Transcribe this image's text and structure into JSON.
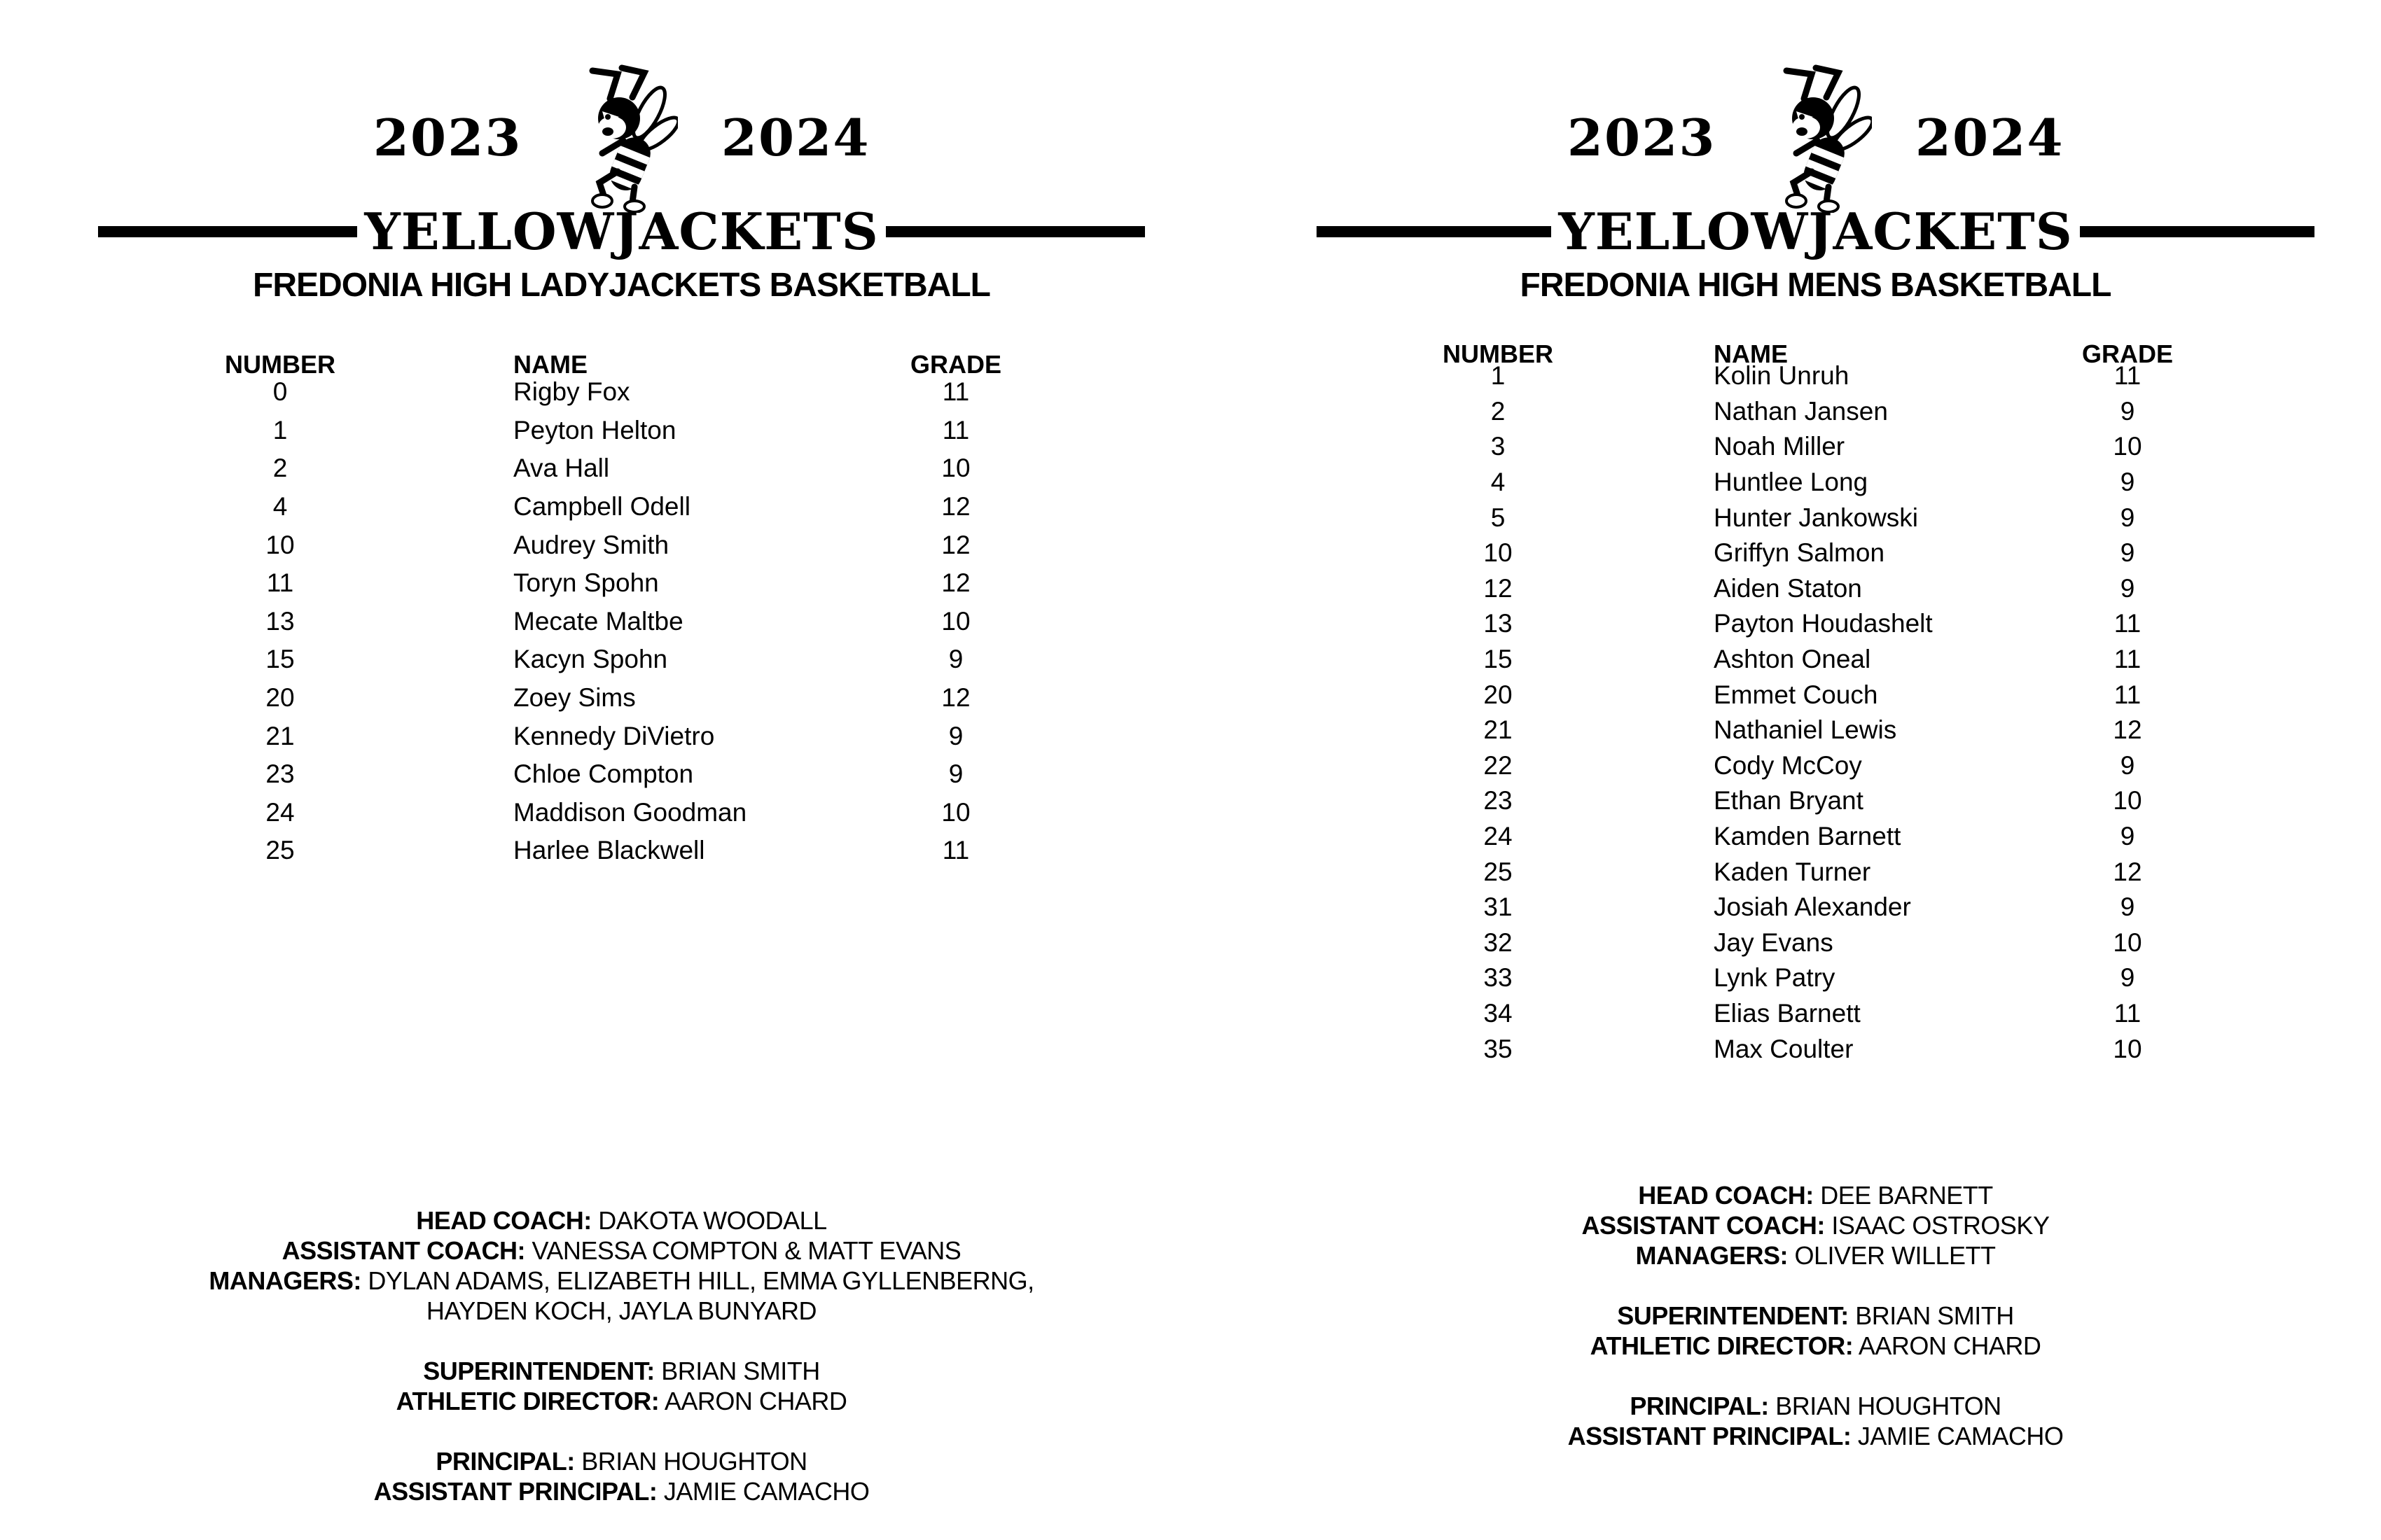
{
  "document": {
    "background_color": "#ffffff",
    "text_color": "#000000"
  },
  "pages": [
    {
      "id": "ladyjackets",
      "season_start": "2023",
      "season_end": "2024",
      "banner": "YELLOWJACKETS",
      "title": "FREDONIA HIGH LADYJACKETS BASKETBALL",
      "mascot_icon": "yellowjacket-mascot",
      "roster": {
        "headers": {
          "number": "NUMBER",
          "name": "NAME",
          "grade": "GRADE"
        },
        "rows": [
          {
            "number": "0",
            "name": "Rigby Fox",
            "grade": "11"
          },
          {
            "number": "1",
            "name": "Peyton Helton",
            "grade": "11"
          },
          {
            "number": "2",
            "name": "Ava Hall",
            "grade": "10"
          },
          {
            "number": "4",
            "name": "Campbell Odell",
            "grade": "12"
          },
          {
            "number": "10",
            "name": "Audrey Smith",
            "grade": "12"
          },
          {
            "number": "11",
            "name": "Toryn Spohn",
            "grade": "12"
          },
          {
            "number": "13",
            "name": "Mecate Maltbe",
            "grade": "10"
          },
          {
            "number": "15",
            "name": "Kacyn Spohn",
            "grade": "9"
          },
          {
            "number": "20",
            "name": "Zoey Sims",
            "grade": "12"
          },
          {
            "number": "21",
            "name": "Kennedy DiVietro",
            "grade": "9"
          },
          {
            "number": "23",
            "name": "Chloe Compton",
            "grade": "9"
          },
          {
            "number": "24",
            "name": "Maddison Goodman",
            "grade": "10"
          },
          {
            "number": "25",
            "name": "Harlee Blackwell",
            "grade": "11"
          }
        ]
      },
      "staff": [
        {
          "label": "HEAD COACH:",
          "value": "DAKOTA WOODALL"
        },
        {
          "label": "ASSISTANT COACH:",
          "value": "VANESSA COMPTON & MATT EVANS"
        },
        {
          "label": "MANAGERS:",
          "value": "DYLAN ADAMS, ELIZABETH HILL, EMMA GYLLENBERNG,"
        },
        {
          "label": "",
          "value": "HAYDEN KOCH, JAYLA BUNYARD"
        },
        {
          "spacer": true
        },
        {
          "label": "SUPERINTENDENT:",
          "value": "BRIAN SMITH"
        },
        {
          "label": "ATHLETIC DIRECTOR:",
          "value": "AARON CHARD"
        },
        {
          "spacer": true
        },
        {
          "label": "PRINCIPAL:",
          "value": "BRIAN HOUGHTON"
        },
        {
          "label": "ASSISTANT PRINCIPAL:",
          "value": "JAMIE CAMACHO"
        }
      ]
    },
    {
      "id": "mens",
      "season_start": "2023",
      "season_end": "2024",
      "banner": "YELLOWJACKETS",
      "title": "FREDONIA HIGH MENS BASKETBALL",
      "mascot_icon": "yellowjacket-mascot",
      "roster": {
        "headers": {
          "number": "NUMBER",
          "name": "NAME",
          "grade": "GRADE"
        },
        "rows": [
          {
            "number": "1",
            "name": "Kolin Unruh",
            "grade": "11"
          },
          {
            "number": "2",
            "name": "Nathan Jansen",
            "grade": "9"
          },
          {
            "number": "3",
            "name": "Noah Miller",
            "grade": "10"
          },
          {
            "number": "4",
            "name": "Huntlee Long",
            "grade": "9"
          },
          {
            "number": "5",
            "name": "Hunter Jankowski",
            "grade": "9"
          },
          {
            "number": "10",
            "name": "Griffyn Salmon",
            "grade": "9"
          },
          {
            "number": "12",
            "name": "Aiden Staton",
            "grade": "9"
          },
          {
            "number": "13",
            "name": "Payton Houdashelt",
            "grade": "11"
          },
          {
            "number": "15",
            "name": "Ashton Oneal",
            "grade": "11"
          },
          {
            "number": "20",
            "name": "Emmet Couch",
            "grade": "11"
          },
          {
            "number": "21",
            "name": "Nathaniel Lewis",
            "grade": "12"
          },
          {
            "number": "22",
            "name": "Cody McCoy",
            "grade": "9"
          },
          {
            "number": "23",
            "name": "Ethan Bryant",
            "grade": "10"
          },
          {
            "number": "24",
            "name": "Kamden Barnett",
            "grade": "9"
          },
          {
            "number": "25",
            "name": "Kaden Turner",
            "grade": "12"
          },
          {
            "number": "31",
            "name": "Josiah Alexander",
            "grade": "9"
          },
          {
            "number": "32",
            "name": "Jay Evans",
            "grade": "10"
          },
          {
            "number": "33",
            "name": "Lynk Patry",
            "grade": "9"
          },
          {
            "number": "34",
            "name": "Elias Barnett",
            "grade": "11"
          },
          {
            "number": "35",
            "name": "Max Coulter",
            "grade": "10"
          }
        ]
      },
      "staff": [
        {
          "label": "HEAD COACH:",
          "value": "DEE BARNETT"
        },
        {
          "label": "ASSISTANT COACH:",
          "value": "ISAAC OSTROSKY"
        },
        {
          "label": "MANAGERS:",
          "value": "OLIVER WILLETT"
        },
        {
          "spacer": true
        },
        {
          "label": "SUPERINTENDENT:",
          "value": "BRIAN SMITH"
        },
        {
          "label": "ATHLETIC DIRECTOR:",
          "value": "AARON CHARD"
        },
        {
          "spacer": true
        },
        {
          "label": "PRINCIPAL:",
          "value": "BRIAN HOUGHTON"
        },
        {
          "label": "ASSISTANT PRINCIPAL:",
          "value": "JAMIE CAMACHO"
        }
      ]
    }
  ]
}
